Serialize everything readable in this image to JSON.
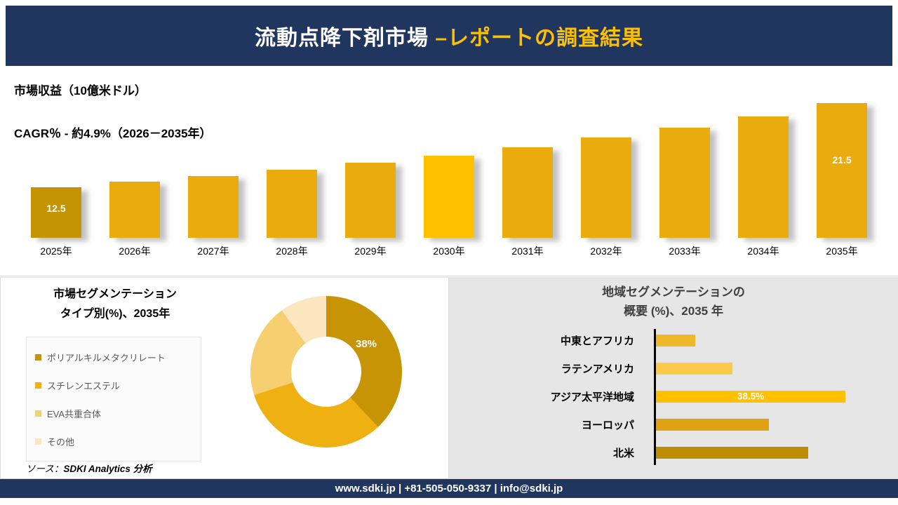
{
  "header": {
    "title_white": "流動点降下剤市場 ",
    "title_gold": "–レポートの調査結果"
  },
  "revenue_section": {
    "metric_label": "市場収益（10億米ドル）",
    "cagr_label": "CAGR％ - 約4.9%（2026－2035年）"
  },
  "segmentation_panel": {
    "title_line1": "市場セグメンテーション",
    "title_line2": "タイプ別(%)、2035年",
    "center_label": "38%",
    "source_prefix": "ソース：",
    "source_name": "SDKI Analytics 分析"
  },
  "regional_panel": {
    "title_line1": "地域セグメンテーションの",
    "title_line2": "概要 (%)、2035 年"
  },
  "footer": {
    "text": "www.sdki.jp | +81-505-050-9337 | info@sdki.jp"
  },
  "colors": {
    "navy": "#21365f",
    "gold_accent": "#ffc000"
  },
  "chart_data": [
    {
      "id": "revenue-by-year",
      "type": "bar",
      "title": "市場収益（10億米ドル）",
      "subtitle": "CAGR％ - 約4.9%（2026－2035年）",
      "categories": [
        "2025年",
        "2026年",
        "2027年",
        "2028年",
        "2029年",
        "2030年",
        "2031年",
        "2032年",
        "2033年",
        "2034年",
        "2035年"
      ],
      "values": [
        12.5,
        13.1,
        13.7,
        14.4,
        15.1,
        15.9,
        16.8,
        17.8,
        18.9,
        20.1,
        21.5
      ],
      "labeled_values": {
        "2025年": "12.5",
        "2035年": "21.5"
      },
      "highlight_index": 5,
      "colors": {
        "first": "#c49406",
        "normal": "#e9ab0d",
        "highlight": "#ffc000"
      },
      "ylabel": "10億米ドル",
      "note": "only first and last bars carry data labels; axis not zero-based"
    },
    {
      "id": "type-segmentation-2035",
      "type": "pie",
      "title": "市場セグメンテーション タイプ別(%)、2035年",
      "slices": [
        {
          "label": "ポリアルキルメタクリレート",
          "value": 38,
          "color": "#c79405",
          "value_label": "38%"
        },
        {
          "label": "スチレンエステル",
          "value": 32,
          "color": "#eeb111"
        },
        {
          "label": "EVA共重合体",
          "value": 20,
          "color": "#f6cf70"
        },
        {
          "label": "その他",
          "value": 10,
          "color": "#fbe6c0"
        }
      ],
      "note": "donut; only 38% slice labeled, others estimated"
    },
    {
      "id": "regional-segmentation-2035",
      "type": "bar",
      "orientation": "horizontal",
      "title": "地域セグメンテーションの 概要 (%)、2035 年",
      "categories": [
        "中東とアフリカ",
        "ラテンアメリカ",
        "アジア太平洋地域",
        "ヨーロッパ",
        "北米"
      ],
      "values": [
        8,
        15.5,
        38.5,
        23,
        31
      ],
      "bar_colors": [
        "#efb82a",
        "#fdc948",
        "#ffc000",
        "#dfa212",
        "#bd8e04"
      ],
      "labeled_values": {
        "アジア太平洋地域": "38.5%"
      },
      "note": "only アジア太平洋地域 labeled, other values estimated"
    }
  ]
}
